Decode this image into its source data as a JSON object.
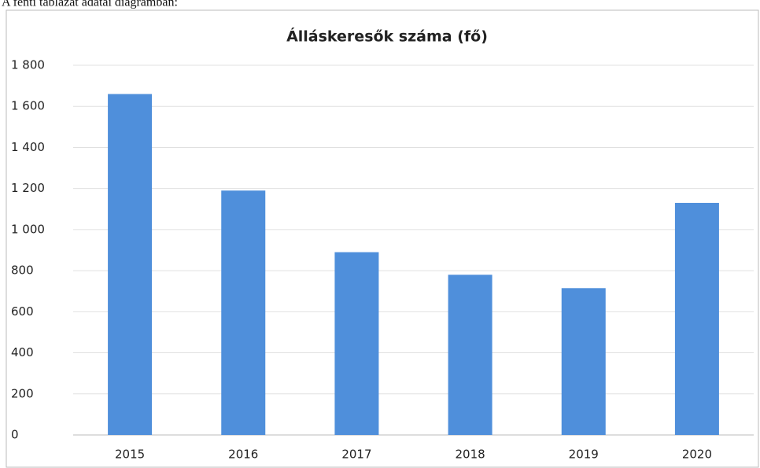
{
  "caption": "A fenti táblázat adatai diagramban:",
  "chart_data": {
    "type": "bar",
    "title": "Álláskeresők száma (fő)",
    "categories": [
      "2015",
      "2016",
      "2017",
      "2018",
      "2019",
      "2020"
    ],
    "values": [
      1660,
      1190,
      890,
      780,
      715,
      1130
    ],
    "color": "#4f8fdb",
    "ylim": [
      0,
      1800
    ],
    "yticks": [
      0,
      200,
      400,
      600,
      800,
      {
        "value": 1000,
        "label": "1 000"
      },
      {
        "value": 1200,
        "label": "1 200"
      },
      {
        "value": 1400,
        "label": "1 400"
      },
      {
        "value": 1600,
        "label": "1 600"
      },
      {
        "value": 1800,
        "label": "1 800"
      }
    ],
    "grid": true
  }
}
